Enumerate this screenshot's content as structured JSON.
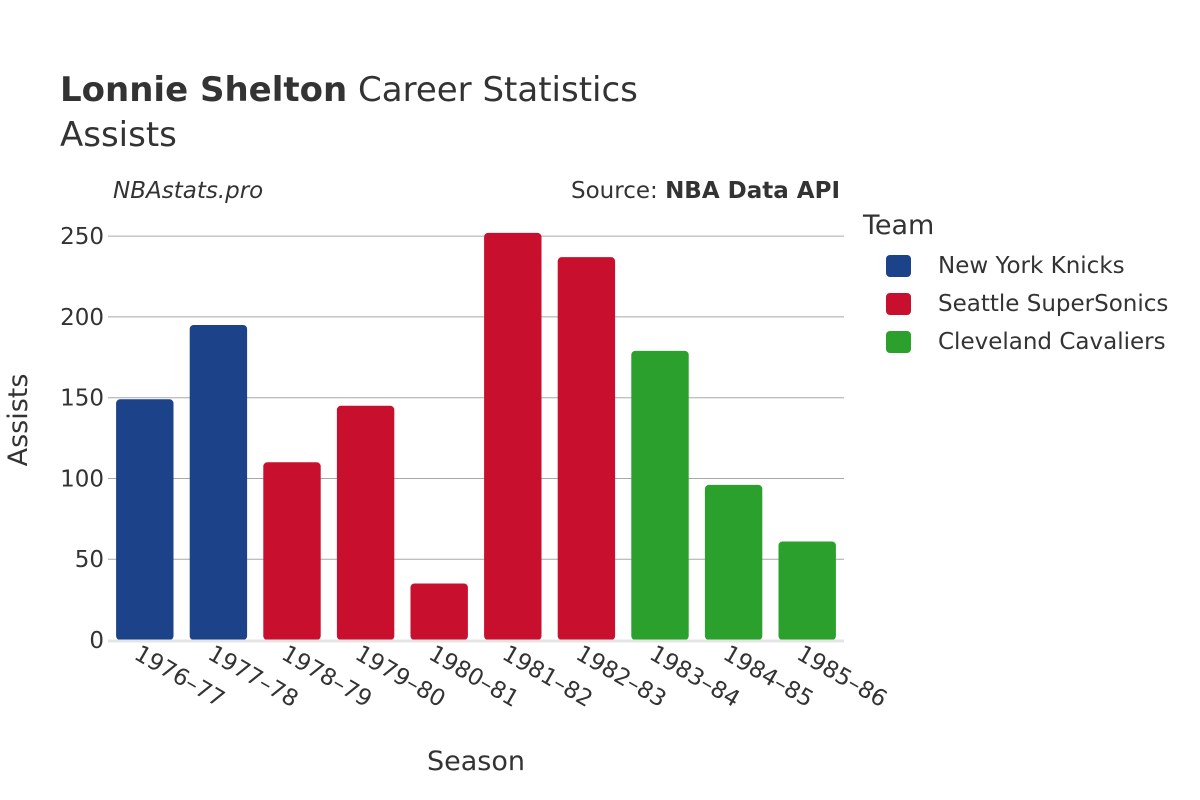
{
  "header": {
    "player": "Lonnie Shelton",
    "title_suffix": "Career Statistics",
    "subtitle": "Assists",
    "site": "NBAstats.pro",
    "source_prefix": "Source: ",
    "source_name": "NBA Data API"
  },
  "legend": {
    "title": "Team",
    "items": [
      {
        "label": "New York Knicks",
        "color": "#1c428a"
      },
      {
        "label": "Seattle SuperSonics",
        "color": "#c8102e"
      },
      {
        "label": "Cleveland Cavaliers",
        "color": "#2ca02c"
      }
    ]
  },
  "chart_data": {
    "type": "bar",
    "title": "Lonnie Shelton Career Statistics",
    "subtitle": "Assists",
    "xlabel": "Season",
    "ylabel": "Assists",
    "ylim": [
      0,
      260
    ],
    "yticks": [
      0,
      50,
      100,
      150,
      200,
      250
    ],
    "grid": true,
    "legend_position": "right",
    "categories": [
      "1976–77",
      "1977–78",
      "1978–79",
      "1979–80",
      "1980–81",
      "1981–82",
      "1982–83",
      "1983–84",
      "1984–85",
      "1985–86"
    ],
    "values": [
      149,
      195,
      110,
      145,
      35,
      252,
      237,
      179,
      96,
      61
    ],
    "teams": [
      "New York Knicks",
      "New York Knicks",
      "Seattle SuperSonics",
      "Seattle SuperSonics",
      "Seattle SuperSonics",
      "Seattle SuperSonics",
      "Seattle SuperSonics",
      "Cleveland Cavaliers",
      "Cleveland Cavaliers",
      "Cleveland Cavaliers"
    ]
  }
}
